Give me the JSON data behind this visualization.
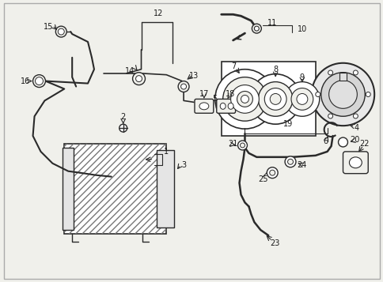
{
  "bg_color": "#f0f0eb",
  "line_color": "#2a2a2a",
  "text_color": "#1a1a1a",
  "fig_width": 4.85,
  "fig_height": 3.57,
  "dpi": 100,
  "border_color": "#999999"
}
